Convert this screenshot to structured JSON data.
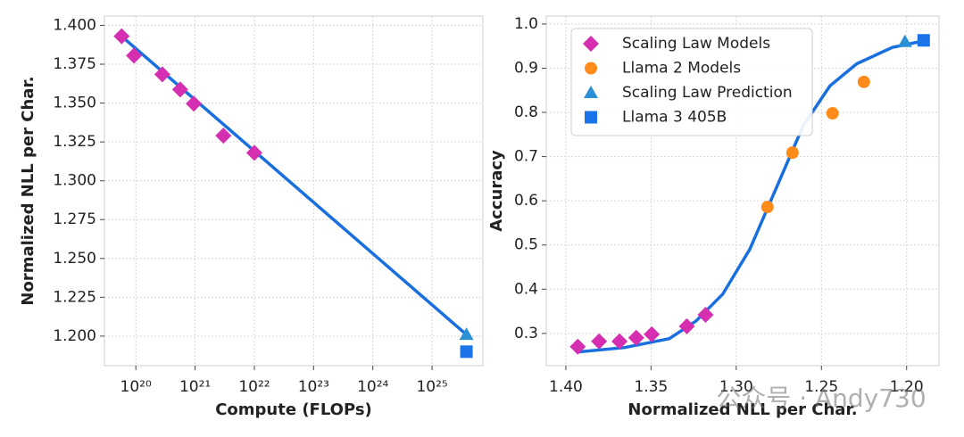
{
  "chart_data": [
    {
      "type": "scatter",
      "xlabel": "Compute (FLOPs)",
      "ylabel": "Normalized NLL per Char.",
      "xscale": "log",
      "xlim": [
        2.95e+19,
        7.2e+25
      ],
      "ylim": [
        1.181,
        1.406
      ],
      "grid": true,
      "xticks": [
        {
          "value": 1e+20,
          "label": "10²⁰"
        },
        {
          "value": 1e+21,
          "label": "10²¹"
        },
        {
          "value": 1e+22,
          "label": "10²²"
        },
        {
          "value": 1e+23,
          "label": "10²³"
        },
        {
          "value": 1e+24,
          "label": "10²⁴"
        },
        {
          "value": 1e+25,
          "label": "10²⁵"
        }
      ],
      "yticks": [
        {
          "value": 1.2,
          "label": "1.200"
        },
        {
          "value": 1.225,
          "label": "1.225"
        },
        {
          "value": 1.25,
          "label": "1.250"
        },
        {
          "value": 1.275,
          "label": "1.275"
        },
        {
          "value": 1.3,
          "label": "1.300"
        },
        {
          "value": 1.325,
          "label": "1.325"
        },
        {
          "value": 1.35,
          "label": "1.350"
        },
        {
          "value": 1.375,
          "label": "1.375"
        },
        {
          "value": 1.4,
          "label": "1.400"
        }
      ],
      "line": {
        "color": "#1a6fe0",
        "x": [
          5.75e+19,
          3.8e+25
        ],
        "values": [
          1.393,
          1.201
        ]
      },
      "series": [
        {
          "marker": "diamond",
          "color": "#d62eb0",
          "x": [
            5.75e+19,
            9.3e+19,
            2.8e+20,
            5.6e+20,
            9.5e+20,
            3e+21,
            1e+22
          ],
          "values": [
            1.393,
            1.3805,
            1.3685,
            1.3587,
            1.3496,
            1.329,
            1.318
          ]
        },
        {
          "marker": "triangle",
          "color": "#2b8fd6",
          "x": [
            3.8e+25
          ],
          "values": [
            1.201
          ]
        },
        {
          "marker": "square",
          "color": "#1a73e8",
          "x": [
            3.8e+25
          ],
          "values": [
            1.19
          ]
        }
      ]
    },
    {
      "type": "scatter",
      "xlabel": "Normalized NLL per Char.",
      "ylabel": "Accuracy",
      "xlim": [
        1.4115,
        1.181
      ],
      "ylim": [
        0.227,
        1.018
      ],
      "grid": true,
      "legend": "upper left",
      "xticks": [
        {
          "value": 1.4,
          "label": "1.40"
        },
        1.35,
        {
          "value": 1.3,
          "label": "1.30"
        },
        1.25,
        {
          "value": 1.2,
          "label": "1.20"
        }
      ],
      "yticks": [
        0.3,
        0.4,
        0.5,
        0.6,
        0.7,
        0.8,
        0.9,
        {
          "value": 1.0,
          "label": "1.0"
        }
      ],
      "line": {
        "color": "#1a6fe0",
        "x": [
          1.3927,
          1.3655,
          1.3393,
          1.3236,
          1.3079,
          1.2921,
          1.2764,
          1.2607,
          1.245,
          1.2293,
          1.2084,
          1.1885
        ],
        "values": [
          0.258,
          0.268,
          0.288,
          0.328,
          0.389,
          0.49,
          0.63,
          0.77,
          0.86,
          0.91,
          0.947,
          0.963
        ]
      },
      "series": [
        {
          "name": "Scaling Law Models",
          "marker": "diamond",
          "color": "#d62eb0",
          "x": [
            1.393,
            1.3805,
            1.3685,
            1.3587,
            1.3496,
            1.329,
            1.318
          ],
          "values": [
            0.27,
            0.282,
            0.282,
            0.29,
            0.298,
            0.316,
            0.342
          ]
        },
        {
          "name": "Llama 2 Models",
          "marker": "circle",
          "color": "#ff8c1a",
          "x": [
            1.2817,
            1.267,
            1.2435,
            1.2251
          ],
          "values": [
            0.586,
            0.709,
            0.798,
            0.869
          ]
        },
        {
          "name": "Scaling Law Prediction",
          "marker": "triangle",
          "color": "#2b8fd6",
          "x": [
            1.201
          ],
          "values": [
            0.96
          ]
        },
        {
          "name": "Llama 3 405B",
          "marker": "square",
          "color": "#1a73e8",
          "x": [
            1.19
          ],
          "values": [
            0.963
          ]
        }
      ]
    }
  ],
  "watermark": "公众号 · Andy730"
}
